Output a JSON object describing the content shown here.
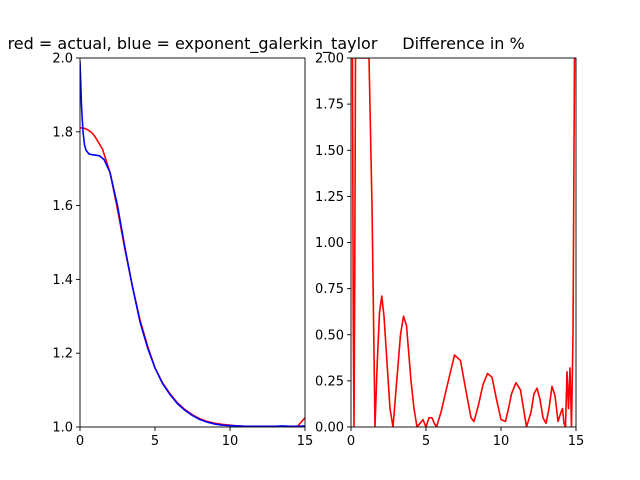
{
  "chart_data": [
    {
      "type": "line",
      "title": "red = actual, blue = exponent_galerkin_taylor",
      "xlabel": "",
      "ylabel": "",
      "xlim": [
        0,
        15
      ],
      "ylim": [
        1.0,
        2.0
      ],
      "xticks": [
        0,
        5,
        10,
        15
      ],
      "xtick_labels": [
        "0",
        "5",
        "10",
        "15"
      ],
      "yticks": [
        1.0,
        1.2,
        1.4,
        1.6,
        1.8,
        2.0
      ],
      "ytick_labels": [
        "1.0",
        "1.2",
        "1.4",
        "1.6",
        "1.8",
        "2.0"
      ],
      "grid": false,
      "series": [
        {
          "color": "#ff0000",
          "x": [
            0,
            0.2,
            0.5,
            0.8,
            1.0,
            1.5,
            2.0,
            2.5,
            3.0,
            3.5,
            4.0,
            4.5,
            5.0,
            5.5,
            6.0,
            6.5,
            7.0,
            7.5,
            8.0,
            8.5,
            9.0,
            9.5,
            10.0,
            10.5,
            11.0,
            11.5,
            12.0,
            12.5,
            13.0,
            13.5,
            14.0,
            14.5,
            15.0
          ],
          "y": [
            1.81,
            1.811,
            1.806,
            1.797,
            1.787,
            1.753,
            1.69,
            1.59,
            1.48,
            1.38,
            1.29,
            1.22,
            1.16,
            1.12,
            1.09,
            1.065,
            1.047,
            1.033,
            1.022,
            1.015,
            1.01,
            1.007,
            1.005,
            1.003,
            1.002,
            1.002,
            1.0015,
            1.001,
            1.001,
            1.0015,
            1.001,
            1.002,
            1.025
          ]
        },
        {
          "color": "#0000ff",
          "x": [
            0,
            0.05,
            0.1,
            0.2,
            0.3,
            0.4,
            0.6,
            0.8,
            1.0,
            1.3,
            1.6,
            2.0,
            2.5,
            3.0,
            3.5,
            4.0,
            4.5,
            5.0,
            5.5,
            6.0,
            6.5,
            7.0,
            7.5,
            8.0,
            8.5,
            9.0,
            9.5,
            10.0,
            10.5,
            11.0,
            11.5,
            12.0,
            12.5,
            13.0,
            13.5,
            14.0,
            14.5,
            15.0
          ],
          "y": [
            1.99,
            1.93,
            1.87,
            1.8,
            1.765,
            1.75,
            1.74,
            1.738,
            1.737,
            1.735,
            1.725,
            1.69,
            1.6,
            1.485,
            1.38,
            1.285,
            1.215,
            1.16,
            1.118,
            1.088,
            1.063,
            1.045,
            1.031,
            1.02,
            1.013,
            1.008,
            1.005,
            1.004,
            1.003,
            1.002,
            1.002,
            1.002,
            1.002,
            1.002,
            1.003,
            1.002,
            1.002,
            1.003
          ]
        }
      ]
    },
    {
      "type": "line",
      "title": "Difference in %",
      "xlabel": "",
      "ylabel": "",
      "xlim": [
        0,
        15
      ],
      "ylim": [
        0.0,
        2.0
      ],
      "xticks": [
        0,
        5,
        10,
        15
      ],
      "xtick_labels": [
        "0",
        "5",
        "10",
        "15"
      ],
      "yticks": [
        0.0,
        0.25,
        0.5,
        0.75,
        1.0,
        1.25,
        1.5,
        1.75,
        2.0
      ],
      "ytick_labels": [
        "0.00",
        "0.25",
        "0.50",
        "0.75",
        "1.00",
        "1.25",
        "1.50",
        "1.75",
        "2.00"
      ],
      "grid": false,
      "series": [
        {
          "color": "#ff0000",
          "x": [
            0.1,
            0.15,
            0.2,
            0.25,
            0.3,
            0.35,
            0.45,
            0.6,
            0.8,
            1.0,
            1.2,
            1.4,
            1.5,
            1.6,
            1.75,
            1.9,
            2.05,
            2.2,
            2.4,
            2.6,
            2.8,
            2.95,
            3.1,
            3.3,
            3.5,
            3.7,
            3.85,
            4.0,
            4.2,
            4.4,
            4.6,
            4.8,
            5.0,
            5.2,
            5.4,
            5.55,
            5.7,
            6.0,
            6.4,
            6.9,
            7.3,
            7.7,
            8.0,
            8.2,
            8.5,
            8.8,
            9.1,
            9.4,
            9.7,
            10.0,
            10.3,
            10.5,
            10.7,
            11.0,
            11.3,
            11.5,
            11.7,
            12.0,
            12.2,
            12.4,
            12.6,
            12.8,
            13.0,
            13.2,
            13.4,
            13.6,
            13.8,
            14.0,
            14.1,
            14.2,
            14.3,
            14.4,
            14.5,
            14.6,
            14.7,
            14.8,
            14.9,
            15.0
          ],
          "y": [
            2.0,
            0.6,
            0.0,
            0.8,
            2.0,
            2.0,
            2.0,
            2.0,
            2.0,
            2.0,
            2.0,
            1.2,
            0.6,
            0.0,
            0.35,
            0.62,
            0.71,
            0.6,
            0.35,
            0.1,
            0.0,
            0.15,
            0.3,
            0.5,
            0.6,
            0.55,
            0.4,
            0.25,
            0.1,
            0.0,
            0.02,
            0.04,
            0.0,
            0.05,
            0.05,
            0.02,
            0.0,
            0.08,
            0.22,
            0.39,
            0.36,
            0.18,
            0.05,
            0.03,
            0.12,
            0.23,
            0.29,
            0.27,
            0.15,
            0.04,
            0.03,
            0.1,
            0.18,
            0.24,
            0.2,
            0.1,
            0.0,
            0.08,
            0.18,
            0.21,
            0.15,
            0.05,
            0.02,
            0.1,
            0.22,
            0.17,
            0.03,
            0.08,
            0.1,
            0.02,
            0.0,
            0.3,
            0.1,
            0.32,
            0.0,
            0.5,
            2.0,
            2.0
          ]
        }
      ]
    }
  ]
}
